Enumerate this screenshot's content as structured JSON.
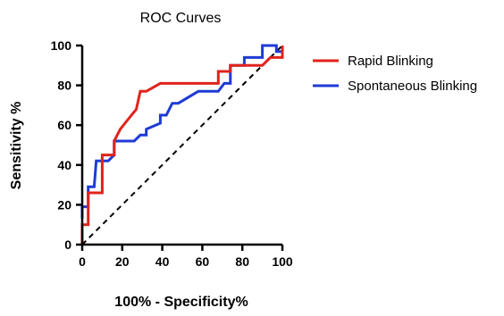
{
  "chart_data": {
    "type": "line",
    "title": "ROC Curves",
    "xlabel": "100% - Specificity%",
    "ylabel": "Sensitivity %",
    "xlim": [
      0,
      100
    ],
    "ylim": [
      0,
      100
    ],
    "xticks": [
      0,
      20,
      40,
      60,
      80,
      100
    ],
    "yticks": [
      0,
      20,
      40,
      60,
      80,
      100
    ],
    "legend_position": "right",
    "reference_line": {
      "style": "dashed",
      "from": [
        0,
        0
      ],
      "to": [
        100,
        100
      ],
      "color": "#000000"
    },
    "series": [
      {
        "name": "Rapid Blinking",
        "color": "#e0231c",
        "points": [
          [
            0,
            0
          ],
          [
            0,
            10
          ],
          [
            3,
            10
          ],
          [
            3,
            26
          ],
          [
            10,
            26
          ],
          [
            10,
            45
          ],
          [
            16,
            45
          ],
          [
            16,
            52
          ],
          [
            19,
            58
          ],
          [
            23,
            63
          ],
          [
            27,
            68
          ],
          [
            29,
            77
          ],
          [
            32,
            77
          ],
          [
            39,
            81
          ],
          [
            68,
            81
          ],
          [
            68,
            87
          ],
          [
            74,
            87
          ],
          [
            74,
            90
          ],
          [
            90,
            90
          ],
          [
            94,
            94
          ],
          [
            100,
            94
          ],
          [
            100,
            100
          ]
        ]
      },
      {
        "name": "Spontaneous Blinking",
        "color": "#1f3bd6",
        "points": [
          [
            0,
            13
          ],
          [
            0,
            19
          ],
          [
            3,
            19
          ],
          [
            3,
            29
          ],
          [
            6,
            29
          ],
          [
            7,
            42
          ],
          [
            13,
            42
          ],
          [
            16,
            45
          ],
          [
            16,
            52
          ],
          [
            26,
            52
          ],
          [
            29,
            55
          ],
          [
            32,
            55
          ],
          [
            32,
            58
          ],
          [
            39,
            61
          ],
          [
            39,
            65
          ],
          [
            42,
            65
          ],
          [
            45,
            71
          ],
          [
            48,
            71
          ],
          [
            58,
            77
          ],
          [
            68,
            77
          ],
          [
            71,
            81
          ],
          [
            74,
            81
          ],
          [
            74,
            90
          ],
          [
            81,
            90
          ],
          [
            81,
            94
          ],
          [
            90,
            94
          ],
          [
            90,
            100
          ],
          [
            97,
            100
          ],
          [
            97,
            97
          ],
          [
            100,
            97
          ]
        ]
      }
    ]
  }
}
